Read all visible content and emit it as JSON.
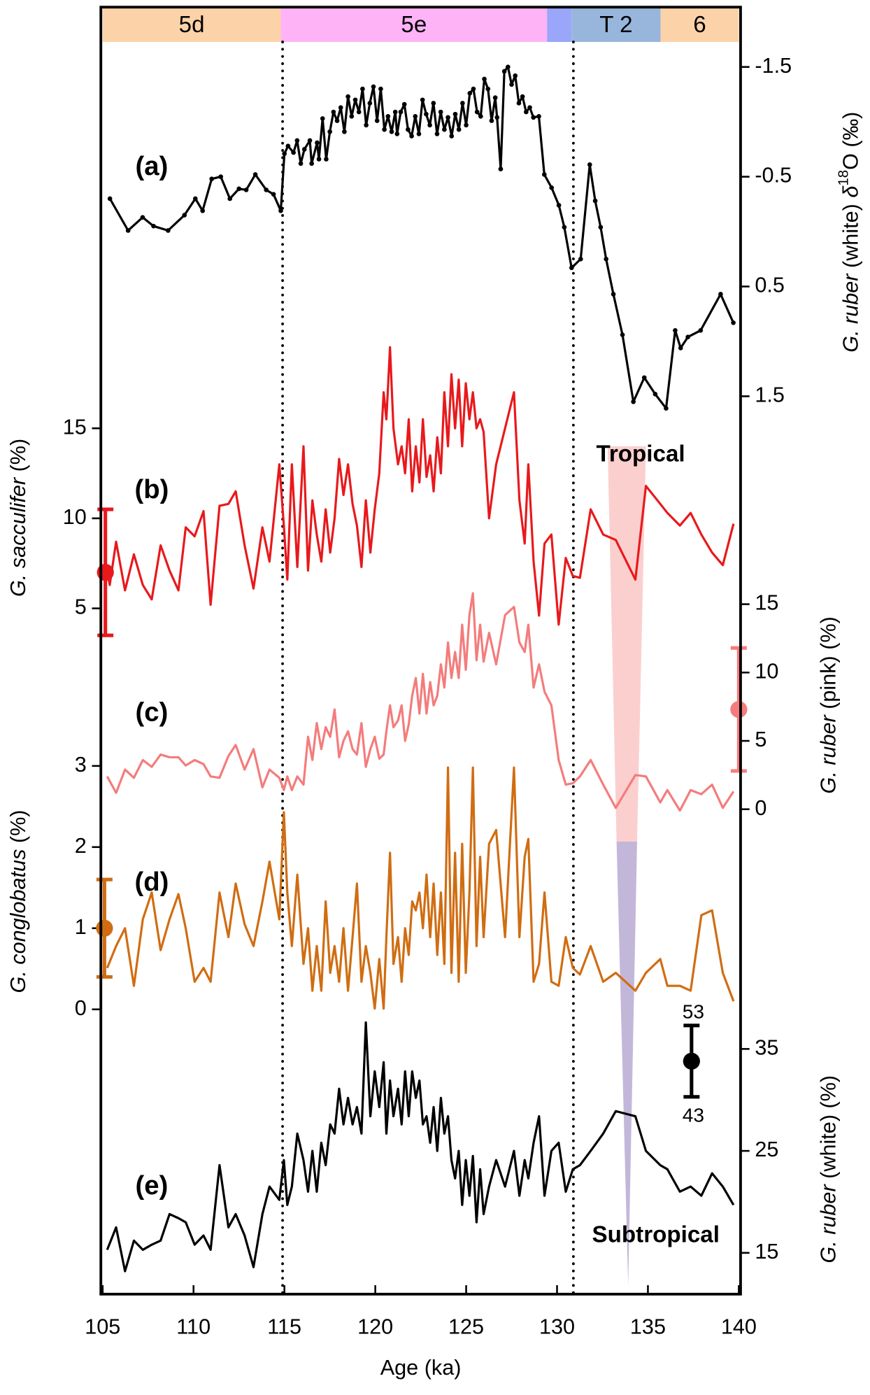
{
  "chart_data": [
    {
      "type": "line",
      "panel": "(a)",
      "axis_side": "right",
      "y_inverted": true,
      "markers": true,
      "color": "#000000",
      "ylabel": [
        {
          "text": "G. ruber",
          "style": "italic"
        },
        {
          "text": " (white) ",
          "style": "normal"
        },
        {
          "text": "δ",
          "style": "italic"
        },
        {
          "text": "18",
          "style": "sup"
        },
        {
          "text": "O (‰)",
          "style": "normal"
        }
      ],
      "ylim": [
        -1.6,
        1.7
      ],
      "yticks": [
        -1.5,
        -0.5,
        0.5,
        1.5
      ],
      "x": [
        105.4,
        106.4,
        107.2,
        107.8,
        108.6,
        109.5,
        110.1,
        110.5,
        111.0,
        111.5,
        112.0,
        112.5,
        112.9,
        113.4,
        114.0,
        114.4,
        114.8,
        115.0,
        115.2,
        115.5,
        115.7,
        115.9,
        116.1,
        116.4,
        116.5,
        116.8,
        116.9,
        117.1,
        117.3,
        117.5,
        117.7,
        117.9,
        118.1,
        118.3,
        118.5,
        118.7,
        118.9,
        119.1,
        119.3,
        119.5,
        119.7,
        119.9,
        120.1,
        120.3,
        120.5,
        120.7,
        120.9,
        121.1,
        121.2,
        121.4,
        121.6,
        121.8,
        122.0,
        122.2,
        122.4,
        122.6,
        122.8,
        123.0,
        123.2,
        123.4,
        123.6,
        123.8,
        124.0,
        124.2,
        124.4,
        124.6,
        124.8,
        125.0,
        125.2,
        125.4,
        125.6,
        125.8,
        126.0,
        126.2,
        126.4,
        126.6,
        126.7,
        126.9,
        127.1,
        127.3,
        127.5,
        127.7,
        127.9,
        128.1,
        128.3,
        128.5,
        128.7,
        129.0,
        129.3,
        129.7,
        130.1,
        130.4,
        130.8,
        131.3,
        131.8,
        132.1,
        132.4,
        132.7,
        133.1,
        133.6,
        134.2,
        134.8,
        135.4,
        136.0,
        136.5,
        136.8,
        137.2,
        137.9,
        139.0,
        139.7
      ],
      "values": [
        -0.3,
        -0.01,
        -0.13,
        -0.05,
        -0.01,
        -0.15,
        -0.3,
        -0.19,
        -0.48,
        -0.5,
        -0.3,
        -0.39,
        -0.38,
        -0.52,
        -0.38,
        -0.34,
        -0.19,
        -0.71,
        -0.78,
        -0.72,
        -0.83,
        -0.62,
        -0.75,
        -0.83,
        -0.62,
        -0.81,
        -0.66,
        -1.03,
        -0.66,
        -0.91,
        -1.09,
        -1.01,
        -1.13,
        -0.91,
        -1.23,
        -1.05,
        -1.2,
        -1.09,
        -1.3,
        -0.97,
        -1.17,
        -1.32,
        -1.01,
        -1.3,
        -0.93,
        -1.05,
        -0.91,
        -1.09,
        -0.89,
        -1.09,
        -1.16,
        -0.93,
        -0.87,
        -1.05,
        -0.89,
        -1.2,
        -1.07,
        -0.97,
        -1.17,
        -0.89,
        -1.09,
        -0.93,
        -1.04,
        -0.87,
        -1.07,
        -0.93,
        -1.17,
        -0.97,
        -1.26,
        -1.3,
        -1.09,
        -1.05,
        -1.39,
        -1.3,
        -1.01,
        -1.22,
        -1.04,
        -0.57,
        -1.46,
        -1.5,
        -1.34,
        -1.42,
        -1.17,
        -1.23,
        -1.09,
        -1.13,
        -1.04,
        -1.05,
        -0.52,
        -0.4,
        -0.24,
        -0.04,
        0.33,
        0.25,
        -0.61,
        -0.28,
        -0.04,
        0.25,
        0.57,
        0.94,
        1.55,
        1.33,
        1.48,
        1.61,
        0.9,
        1.06,
        0.96,
        0.9,
        0.57,
        0.83
      ]
    },
    {
      "type": "line",
      "panel": "(b)",
      "axis_side": "left",
      "color": "#e8191c",
      "ylabel": [
        {
          "text": "G. sacculifer",
          "style": "italic"
        },
        {
          "text": " (%)",
          "style": "normal"
        }
      ],
      "ylim": [
        3,
        20
      ],
      "yticks": [
        5,
        10,
        15
      ],
      "x": [
        105.25,
        105.39,
        105.74,
        106.23,
        106.72,
        107.21,
        107.7,
        108.19,
        108.68,
        109.17,
        109.57,
        110.06,
        110.55,
        110.94,
        111.43,
        111.92,
        112.32,
        112.81,
        113.3,
        113.79,
        114.18,
        114.72,
        114.97,
        115.16,
        115.41,
        115.71,
        116.05,
        116.3,
        116.54,
        116.78,
        117.03,
        117.27,
        117.52,
        117.76,
        118.01,
        118.25,
        118.5,
        118.75,
        118.99,
        119.24,
        119.48,
        119.73,
        119.97,
        120.22,
        120.46,
        120.61,
        120.81,
        121.0,
        121.25,
        121.45,
        121.64,
        121.84,
        122.03,
        122.23,
        122.43,
        122.62,
        122.82,
        123.02,
        123.21,
        123.41,
        123.61,
        123.8,
        124.0,
        124.19,
        124.39,
        124.59,
        124.78,
        124.98,
        125.18,
        125.37,
        125.57,
        125.77,
        125.96,
        126.26,
        126.65,
        127.14,
        127.63,
        127.93,
        128.22,
        128.42,
        128.71,
        129.01,
        129.31,
        129.69,
        130.09,
        130.48,
        130.87,
        131.26,
        131.85,
        132.54,
        133.23,
        134.31,
        134.89,
        135.68,
        136.07,
        136.76,
        137.35,
        137.94,
        138.53,
        139.12,
        139.71
      ],
      "values": [
        7.1,
        6.3,
        8.7,
        6.0,
        8.0,
        6.3,
        5.5,
        8.5,
        7.1,
        6.0,
        9.5,
        9.0,
        10.4,
        5.2,
        10.7,
        10.8,
        11.5,
        8.5,
        6.1,
        9.5,
        7.6,
        13.0,
        9.6,
        6.6,
        13.0,
        7.3,
        14.0,
        7.1,
        11.0,
        9.1,
        7.6,
        10.5,
        8.1,
        10.0,
        13.3,
        11.3,
        13.0,
        10.8,
        9.6,
        7.3,
        11.0,
        8.1,
        10.5,
        12.5,
        17.0,
        15.5,
        19.5,
        15.0,
        13.0,
        14.0,
        12.5,
        15.5,
        11.5,
        14.0,
        12.0,
        15.5,
        12.3,
        13.5,
        11.5,
        14.5,
        12.5,
        17.0,
        14.0,
        18.0,
        15.0,
        17.7,
        14.0,
        17.5,
        15.5,
        17.0,
        15.0,
        15.5,
        14.8,
        10.0,
        13.0,
        15.0,
        17.0,
        11.0,
        8.6,
        13.0,
        7.6,
        4.6,
        8.6,
        9.1,
        4.1,
        7.8,
        6.8,
        6.7,
        10.5,
        9.1,
        8.8,
        6.6,
        11.8,
        10.8,
        10.3,
        9.6,
        10.3,
        9.1,
        8.1,
        7.4,
        9.7
      ],
      "error_bar": {
        "x": 105.15,
        "value": 7.0,
        "error": 3.5
      }
    },
    {
      "type": "line",
      "panel": "(c)",
      "axis_side": "right",
      "color": "#f47c7c",
      "ylabel": [
        {
          "text": "G. ruber",
          "style": "italic"
        },
        {
          "text": " (pink) (%)",
          "style": "normal"
        }
      ],
      "ylim": [
        -1,
        18
      ],
      "yticks": [
        0,
        5,
        10,
        15
      ],
      "x": [
        105.25,
        105.74,
        106.23,
        106.72,
        107.21,
        107.7,
        108.19,
        108.68,
        109.17,
        109.57,
        110.06,
        110.55,
        110.94,
        111.43,
        111.92,
        112.32,
        112.81,
        113.3,
        113.79,
        114.18,
        114.72,
        114.97,
        115.16,
        115.41,
        115.71,
        116.05,
        116.3,
        116.54,
        116.78,
        117.03,
        117.27,
        117.52,
        117.76,
        118.01,
        118.25,
        118.5,
        118.75,
        118.99,
        119.24,
        119.48,
        119.73,
        119.97,
        120.22,
        120.46,
        120.61,
        120.81,
        121.0,
        121.25,
        121.45,
        121.64,
        121.84,
        122.03,
        122.23,
        122.43,
        122.62,
        122.82,
        123.02,
        123.21,
        123.41,
        123.61,
        123.8,
        124.0,
        124.19,
        124.39,
        124.59,
        124.78,
        124.98,
        125.18,
        125.37,
        125.57,
        125.77,
        125.96,
        126.26,
        126.65,
        127.14,
        127.63,
        127.93,
        128.22,
        128.42,
        128.71,
        129.01,
        129.31,
        129.69,
        130.09,
        130.48,
        130.87,
        131.26,
        131.85,
        132.54,
        133.23,
        134.31,
        134.89,
        135.68,
        136.07,
        136.76,
        137.35,
        137.94,
        138.53,
        139.12,
        139.71
      ],
      "values": [
        2.4,
        1.2,
        2.9,
        2.3,
        3.6,
        3.1,
        4.0,
        3.8,
        3.8,
        3.2,
        3.6,
        3.3,
        2.4,
        2.3,
        3.9,
        4.7,
        2.9,
        4.4,
        1.6,
        2.9,
        2.3,
        1.4,
        2.4,
        1.4,
        2.4,
        1.8,
        5.3,
        3.6,
        6.3,
        4.4,
        6.0,
        5.3,
        7.3,
        3.8,
        5.0,
        5.7,
        4.4,
        4.0,
        6.3,
        3.1,
        4.4,
        5.3,
        3.7,
        4.0,
        5.7,
        7.6,
        6.0,
        6.5,
        7.6,
        5.0,
        6.2,
        8.3,
        9.6,
        7.0,
        9.9,
        7.0,
        9.3,
        7.6,
        8.3,
        10.6,
        8.9,
        12.2,
        9.6,
        11.5,
        9.6,
        13.5,
        10.2,
        14.2,
        15.8,
        10.9,
        13.5,
        10.8,
        12.9,
        10.6,
        14.2,
        14.8,
        12.2,
        11.5,
        13.5,
        8.9,
        10.6,
        8.6,
        7.6,
        3.6,
        1.8,
        1.9,
        2.4,
        3.6,
        1.8,
        0.1,
        2.5,
        2.4,
        0.5,
        1.4,
        -0.1,
        1.4,
        1.1,
        1.8,
        0.1,
        1.3
      ],
      "error_bar": {
        "x": 140,
        "value": 7.3,
        "error": 4.5
      }
    },
    {
      "type": "line",
      "panel": "(d)",
      "axis_side": "left",
      "color": "#d06d12",
      "ylabel": [
        {
          "text": "G. conglobatus",
          "style": "italic"
        },
        {
          "text": " (%)",
          "style": "normal"
        }
      ],
      "ylim": [
        -0.1,
        3.2
      ],
      "yticks": [
        0,
        1,
        2,
        3
      ],
      "x": [
        105.25,
        105.74,
        106.23,
        106.72,
        107.21,
        107.7,
        108.19,
        108.68,
        109.17,
        109.57,
        110.06,
        110.55,
        110.94,
        111.43,
        111.92,
        112.32,
        112.81,
        113.3,
        113.79,
        114.18,
        114.72,
        114.97,
        115.16,
        115.41,
        115.71,
        116.05,
        116.3,
        116.54,
        116.78,
        117.03,
        117.27,
        117.52,
        117.76,
        118.01,
        118.25,
        118.5,
        118.75,
        118.99,
        119.24,
        119.48,
        119.73,
        119.97,
        120.22,
        120.46,
        120.61,
        120.81,
        121.0,
        121.25,
        121.45,
        121.64,
        121.84,
        122.03,
        122.23,
        122.43,
        122.62,
        122.82,
        123.02,
        123.21,
        123.41,
        123.61,
        123.8,
        124.0,
        124.19,
        124.39,
        124.59,
        124.78,
        124.98,
        125.18,
        125.37,
        125.57,
        125.77,
        125.96,
        126.26,
        126.65,
        127.14,
        127.63,
        127.93,
        128.22,
        128.42,
        128.71,
        129.01,
        129.31,
        129.69,
        130.09,
        130.48,
        130.87,
        131.26,
        131.85,
        132.54,
        133.23,
        134.31,
        134.89,
        135.68,
        136.07,
        136.76,
        137.35,
        137.94,
        138.53,
        139.12,
        139.71
      ],
      "values": [
        0.51,
        0.78,
        1.0,
        0.29,
        1.11,
        1.44,
        0.73,
        1.11,
        1.42,
        1.0,
        0.34,
        0.51,
        0.34,
        1.44,
        0.89,
        1.55,
        1.05,
        0.78,
        1.33,
        1.82,
        1.11,
        2.43,
        1.44,
        0.78,
        1.66,
        0.56,
        1.0,
        0.23,
        0.78,
        0.23,
        1.33,
        0.45,
        0.78,
        0.34,
        1.0,
        0.23,
        0.89,
        1.55,
        0.34,
        0.78,
        0.45,
        0.01,
        0.62,
        0.01,
        0.89,
        1.93,
        0.56,
        0.89,
        0.34,
        1.0,
        0.67,
        1.33,
        1.22,
        1.44,
        1.0,
        1.66,
        0.89,
        1.55,
        0.67,
        1.44,
        0.56,
        2.98,
        0.45,
        1.93,
        0.34,
        2.04,
        0.45,
        1.44,
        2.98,
        0.78,
        1.88,
        0.89,
        2.04,
        2.21,
        0.89,
        2.98,
        0.89,
        1.88,
        2.1,
        0.34,
        0.56,
        1.44,
        0.34,
        0.29,
        0.89,
        0.51,
        0.43,
        0.78,
        0.34,
        0.45,
        0.23,
        0.45,
        0.62,
        0.29,
        0.29,
        0.23,
        1.16,
        1.22,
        0.45,
        0.1
      ],
      "error_bar": {
        "x": 105.1,
        "value": 1.0,
        "error": 0.6
      }
    },
    {
      "type": "line",
      "panel": "(e)",
      "axis_side": "right",
      "color": "#000000",
      "ylabel": [
        {
          "text": "G. ruber",
          "style": "italic"
        },
        {
          "text": " (white) (%)",
          "style": "normal"
        }
      ],
      "ylim": [
        12,
        38
      ],
      "yticks": [
        15,
        25,
        35
      ],
      "x": [
        105.25,
        105.74,
        106.23,
        106.72,
        107.21,
        107.7,
        108.19,
        108.68,
        109.17,
        109.57,
        110.06,
        110.55,
        110.94,
        111.43,
        111.92,
        112.32,
        112.81,
        113.3,
        113.79,
        114.18,
        114.72,
        114.97,
        115.16,
        115.41,
        115.71,
        116.05,
        116.3,
        116.54,
        116.78,
        117.03,
        117.27,
        117.52,
        117.76,
        118.01,
        118.25,
        118.5,
        118.75,
        118.99,
        119.24,
        119.48,
        119.73,
        119.97,
        120.22,
        120.46,
        120.61,
        120.81,
        121.0,
        121.25,
        121.45,
        121.64,
        121.84,
        122.03,
        122.23,
        122.43,
        122.62,
        122.82,
        123.02,
        123.21,
        123.41,
        123.61,
        123.8,
        124.0,
        124.19,
        124.39,
        124.59,
        124.78,
        124.98,
        125.18,
        125.37,
        125.57,
        125.77,
        125.96,
        126.26,
        126.65,
        127.14,
        127.63,
        127.93,
        128.22,
        128.42,
        128.71,
        129.01,
        129.31,
        129.69,
        130.09,
        130.48,
        130.87,
        131.26,
        131.85,
        132.54,
        133.23,
        134.31,
        134.89,
        135.68,
        136.07,
        136.76,
        137.35,
        137.94,
        138.53,
        139.12,
        139.71
      ],
      "values": [
        15.3,
        17.5,
        13.2,
        16.2,
        15.3,
        15.8,
        16.2,
        18.8,
        18.4,
        18.0,
        15.8,
        16.7,
        15.3,
        23.6,
        17.5,
        18.8,
        16.7,
        13.6,
        18.8,
        21.5,
        20.2,
        24.1,
        19.7,
        21.5,
        26.7,
        24.1,
        21.0,
        25.0,
        21.0,
        25.8,
        23.6,
        27.6,
        26.7,
        31.1,
        27.6,
        30.2,
        27.6,
        29.3,
        26.7,
        37.6,
        28.4,
        32.8,
        29.3,
        33.7,
        26.7,
        31.9,
        28.4,
        31.1,
        27.6,
        32.8,
        28.4,
        32.8,
        30.2,
        31.9,
        27.6,
        28.4,
        25.8,
        29.3,
        25.0,
        30.2,
        26.7,
        28.4,
        24.1,
        22.3,
        25.0,
        19.7,
        24.1,
        20.6,
        24.5,
        18.0,
        23.2,
        18.8,
        21.5,
        24.1,
        21.5,
        25.0,
        20.6,
        24.1,
        22.3,
        25.8,
        28.4,
        20.6,
        25.0,
        25.8,
        21.0,
        23.2,
        23.6,
        25.0,
        26.7,
        28.9,
        28.4,
        25.0,
        23.6,
        23.2,
        21.0,
        21.5,
        20.6,
        22.8,
        21.5,
        19.7
      ],
      "error_bar": {
        "x": 137.4,
        "value": 33.8,
        "error": 3.5
      }
    }
  ],
  "x_axis": {
    "label": "Age (ka)",
    "xlim": [
      105,
      140
    ],
    "xticks": [
      105,
      110,
      115,
      120,
      125,
      130,
      135,
      140
    ]
  },
  "stages": {
    "labels": [
      "5d",
      "5e",
      null,
      "T 2",
      "6"
    ],
    "starts": [
      105,
      114.8,
      129.45,
      130.8,
      135.7
    ],
    "ends": [
      114.8,
      129.45,
      130.8,
      135.7,
      140
    ],
    "colors": [
      "#fcd3a8",
      "#ffb3f7",
      "#9aa6f9",
      "#98b6dc",
      "#fcd3a8"
    ]
  },
  "boundaries": [
    114.9,
    130.9
  ],
  "annotations": {
    "tropical": "Tropical",
    "subtropical": "Subtropical",
    "scale_top": "53",
    "scale_bottom": "43"
  }
}
